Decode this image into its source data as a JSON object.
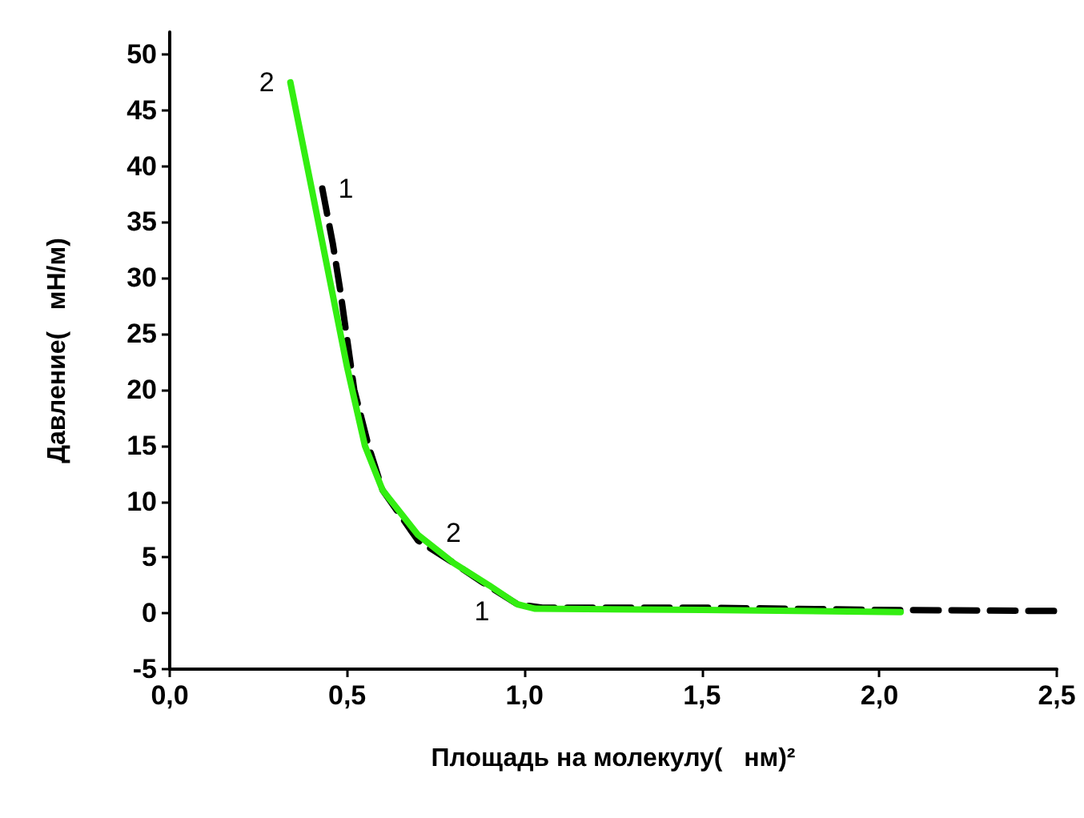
{
  "chart_data": {
    "type": "line",
    "xlabel": "Площадь на молекулу(   нм)²",
    "ylabel": "Давление(   мН/м)",
    "xlim": [
      0,
      2.5
    ],
    "ylim": [
      -5,
      52
    ],
    "xticks": [
      {
        "value": 0,
        "label": "0,0"
      },
      {
        "value": 0.5,
        "label": "0,5"
      },
      {
        "value": 1,
        "label": "1,0"
      },
      {
        "value": 1.5,
        "label": "1,5"
      },
      {
        "value": 2,
        "label": "2,0"
      },
      {
        "value": 2.5,
        "label": "2,5"
      }
    ],
    "yticks": [
      -5,
      0,
      5,
      10,
      15,
      20,
      25,
      30,
      35,
      40,
      45,
      50
    ],
    "grid": false,
    "marker": "none",
    "series": [
      {
        "name": "1",
        "color": "#000000",
        "line_style": "dashed",
        "x": [
          0.43,
          0.46,
          0.48,
          0.52,
          0.56,
          0.6,
          0.7,
          0.8,
          0.88,
          0.98,
          1.05,
          1.5,
          2.0,
          2.5
        ],
        "values": [
          38,
          33,
          29,
          20,
          15,
          11,
          6.5,
          4.5,
          2.8,
          0.8,
          0.5,
          0.5,
          0.3,
          0.2
        ]
      },
      {
        "name": "2",
        "color": "#33ee11",
        "line_style": "solid",
        "x": [
          0.34,
          0.4,
          0.45,
          0.5,
          0.55,
          0.6,
          0.7,
          0.8,
          0.9,
          0.98,
          1.03,
          1.5,
          2.06
        ],
        "values": [
          47.5,
          38,
          30,
          22,
          15,
          11,
          7,
          4.5,
          2.5,
          0.8,
          0.4,
          0.3,
          0.1
        ]
      }
    ]
  }
}
